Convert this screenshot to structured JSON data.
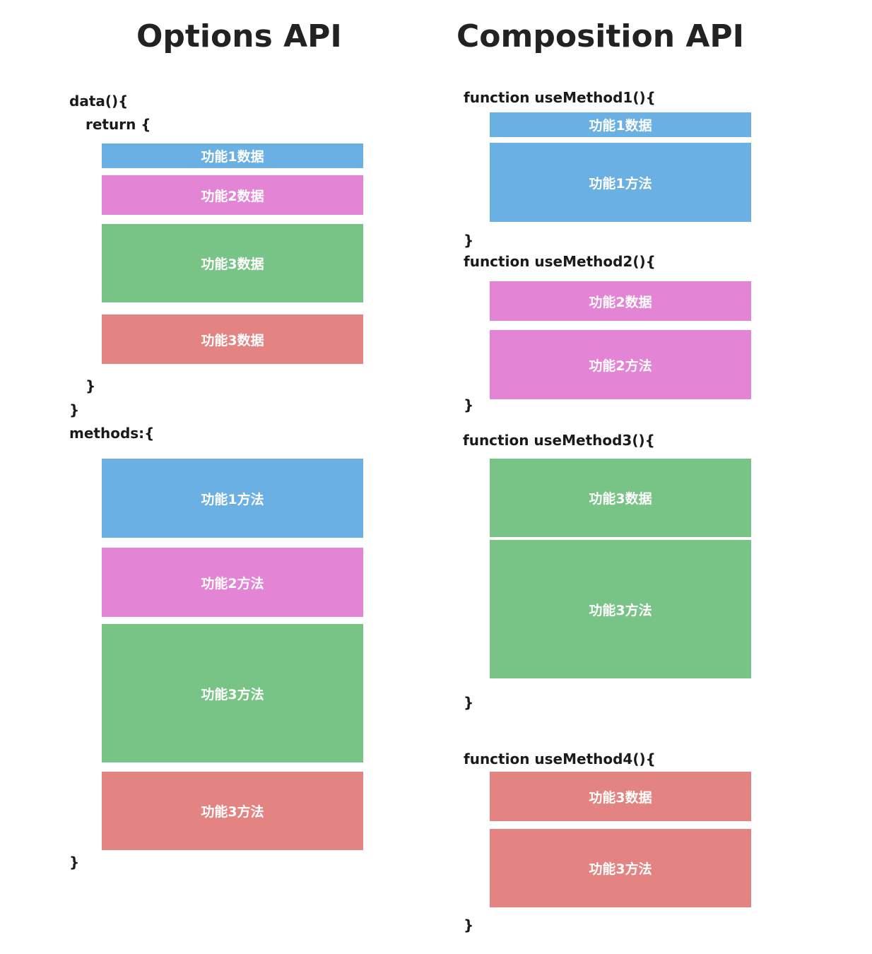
{
  "left": {
    "title": "Options API",
    "lines": {
      "data_open": "data(){",
      "return_open": "return {",
      "return_close": "}",
      "data_close": "}",
      "methods_open": "methods:{",
      "methods_close": "}"
    },
    "data_blocks": [
      "功能1数据",
      "功能2数据",
      "功能3数据",
      "功能3数据"
    ],
    "method_blocks": [
      "功能1方法",
      "功能2方法",
      "功能3方法",
      "功能3方法"
    ]
  },
  "right": {
    "title": "Composition API",
    "functions": [
      {
        "header": "function useMethod1(){",
        "close": "}",
        "blocks": [
          "功能1数据",
          "功能1方法"
        ]
      },
      {
        "header": "function useMethod2(){",
        "close": "}",
        "blocks": [
          "功能2数据",
          "功能2方法"
        ]
      },
      {
        "header": "function useMethod3(){",
        "close": "}",
        "blocks": [
          "功能3数据",
          "功能3方法"
        ]
      },
      {
        "header": "function useMethod4(){",
        "close": "}",
        "blocks": [
          "功能3数据",
          "功能3方法"
        ]
      }
    ]
  },
  "colors": {
    "feature1": "#6ab0e3",
    "feature2": "#e384d4",
    "feature3": "#78c486",
    "feature4": "#e38483"
  }
}
